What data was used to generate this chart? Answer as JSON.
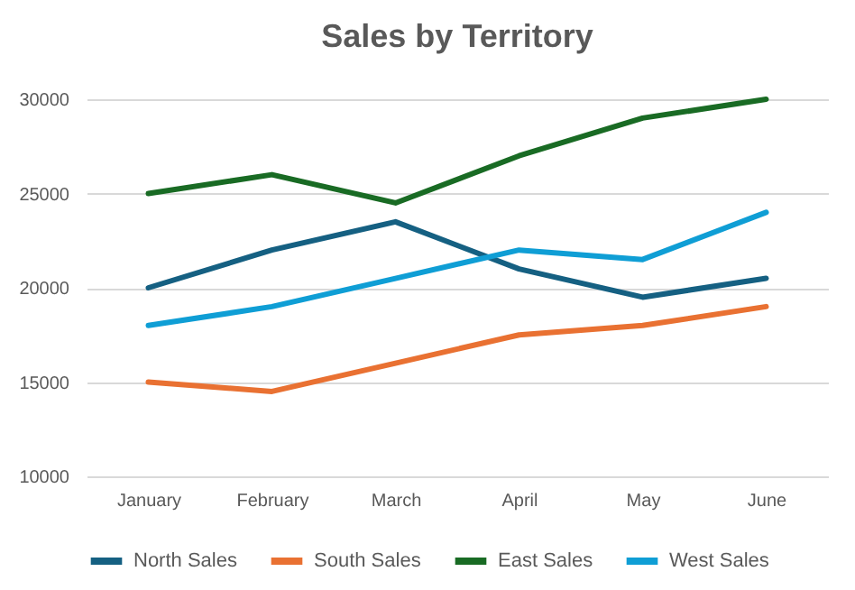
{
  "chart_data": {
    "type": "line",
    "title": "Sales by Territory",
    "categories": [
      "January",
      "February",
      "March",
      "April",
      "May",
      "June"
    ],
    "series": [
      {
        "name": "North Sales",
        "color": "#156082",
        "values": [
          20000,
          22000,
          23500,
          21000,
          19500,
          20500
        ]
      },
      {
        "name": "South Sales",
        "color": "#e97132",
        "values": [
          15000,
          14500,
          16000,
          17500,
          18000,
          19000
        ]
      },
      {
        "name": "East Sales",
        "color": "#196b24",
        "values": [
          25000,
          26000,
          24500,
          27000,
          29000,
          30000
        ]
      },
      {
        "name": "West Sales",
        "color": "#0f9ed5",
        "values": [
          18000,
          19000,
          20500,
          22000,
          21500,
          24000
        ]
      }
    ],
    "ylim": [
      10000,
      30000
    ],
    "yticks": [
      10000,
      15000,
      20000,
      25000,
      30000
    ],
    "grid": "y",
    "legend": "bottom",
    "marker": "none",
    "line_style": "solid"
  }
}
